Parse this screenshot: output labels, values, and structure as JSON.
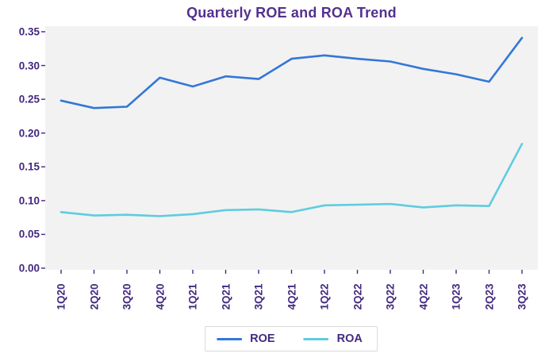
{
  "colors": {
    "title_text": "#54308f",
    "tick_text": "#43297f",
    "plot_background": "#f2f2f3",
    "tick_mark": "#43297f",
    "legend_border": "#d9d9d9",
    "roe_line": "#3377d6",
    "roa_line": "#5fccdf"
  },
  "chart_data": {
    "type": "line",
    "title": "Quarterly ROE and ROA Trend",
    "categories": [
      "1Q20",
      "2Q20",
      "3Q20",
      "4Q20",
      "1Q21",
      "2Q21",
      "3Q21",
      "4Q21",
      "1Q22",
      "2Q22",
      "3Q22",
      "4Q22",
      "1Q23",
      "2Q23",
      "3Q23"
    ],
    "series": [
      {
        "name": "ROE",
        "color": "#3377d6",
        "values": [
          0.248,
          0.237,
          0.239,
          0.282,
          0.269,
          0.284,
          0.28,
          0.31,
          0.315,
          0.31,
          0.306,
          0.295,
          0.287,
          0.276,
          0.341
        ]
      },
      {
        "name": "ROA",
        "color": "#5fccdf",
        "values": [
          0.083,
          0.078,
          0.079,
          0.077,
          0.08,
          0.086,
          0.087,
          0.083,
          0.093,
          0.094,
          0.095,
          0.09,
          0.093,
          0.092,
          0.184
        ]
      }
    ],
    "xlabel": "",
    "ylabel": "",
    "ylim": [
      0,
      0.35
    ],
    "yticks": [
      0.35,
      0.3,
      0.25,
      0.2,
      0.15,
      0.1,
      0.05,
      0.0
    ],
    "grid": false,
    "legend_position": "bottom-center",
    "x_tick_rotation": 90
  }
}
